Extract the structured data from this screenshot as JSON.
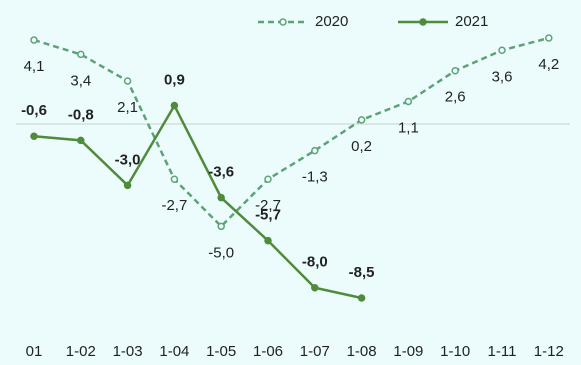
{
  "chart_data": {
    "type": "line",
    "categories": [
      "01",
      "1-02",
      "1-03",
      "1-04",
      "1-05",
      "1-06",
      "1-07",
      "1-08",
      "1-09",
      "1-10",
      "1-11",
      "1-12"
    ],
    "series": [
      {
        "name": "2020",
        "color": "#5fa277",
        "dashed": true,
        "values": [
          4.1,
          3.4,
          2.1,
          -2.7,
          -5.0,
          -2.7,
          -1.3,
          0.2,
          1.1,
          2.6,
          3.6,
          4.2
        ],
        "value_labels": [
          "4,1",
          "3,4",
          "2,1",
          "-2,7",
          "-5,0",
          "-2,7",
          "-1,3",
          "0,2",
          "1,1",
          "2,6",
          "3,6",
          "4,2"
        ]
      },
      {
        "name": "2021",
        "color": "#4f8b3b",
        "dashed": false,
        "values": [
          -0.6,
          -0.8,
          -3.0,
          0.9,
          -3.6,
          -5.7,
          -8.0,
          -8.5,
          null,
          null,
          null,
          null
        ],
        "value_labels": [
          "-0,6",
          "-0,8",
          "-3,0",
          "0,9",
          "-3,6",
          "-5,7",
          "-8,0",
          "-8,5",
          null,
          null,
          null,
          null
        ]
      }
    ]
  }
}
